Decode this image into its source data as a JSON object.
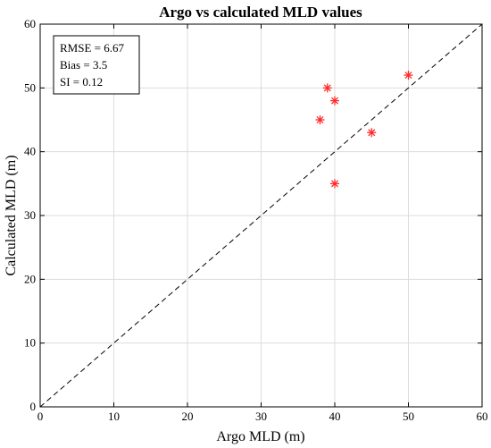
{
  "chart_data": {
    "type": "scatter",
    "title": "Argo vs calculated MLD values",
    "xlabel": "Argo MLD (m)",
    "ylabel": "Calculated MLD (m)",
    "xlim": [
      0,
      60
    ],
    "ylim": [
      0,
      60
    ],
    "xticks": [
      "0",
      "10",
      "20",
      "30",
      "40",
      "50",
      "60"
    ],
    "yticks": [
      "0",
      "10",
      "20",
      "30",
      "40",
      "50",
      "60"
    ],
    "grid": true,
    "reference_line": {
      "style": "dashed",
      "color": "#000000",
      "x": [
        0,
        60
      ],
      "y": [
        0,
        60
      ]
    },
    "series": [
      {
        "marker": "asterisk",
        "color": "#ff2a2a",
        "points": [
          {
            "x": 38,
            "y": 45
          },
          {
            "x": 39,
            "y": 50
          },
          {
            "x": 40,
            "y": 48
          },
          {
            "x": 40,
            "y": 35
          },
          {
            "x": 45,
            "y": 43
          },
          {
            "x": 50,
            "y": 52
          }
        ]
      }
    ],
    "stats": {
      "rmse": "RMSE = 6.67",
      "bias": "Bias = 3.5",
      "si": "SI = 0.12"
    },
    "stats_box_position": "top-left"
  }
}
